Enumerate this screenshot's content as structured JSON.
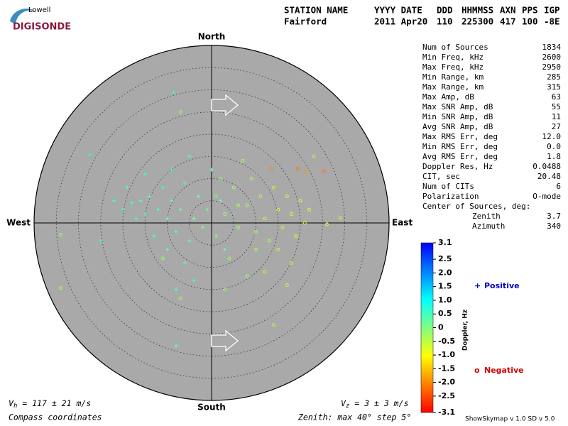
{
  "logo": {
    "top": "Lowell",
    "bottom": "DIGISONDE"
  },
  "header": {
    "columns": [
      "STATION NAME",
      "YYYY DATE",
      "DDD",
      "HHMMSS",
      "AXN",
      "PPS",
      "IGP"
    ],
    "values": [
      "Fairford",
      "2011 Apr20",
      "110",
      "225300",
      "417",
      "100",
      "-8E"
    ]
  },
  "stats": [
    [
      "Num of Sources",
      "1834"
    ],
    [
      "Min Freq, kHz",
      "2600"
    ],
    [
      "Max Freq, kHz",
      "2950"
    ],
    [
      "Min Range, km",
      "285"
    ],
    [
      "Max Range, km",
      "315"
    ],
    [
      "Max Amp, dB",
      "63"
    ],
    [
      "Max SNR Amp, dB",
      "55"
    ],
    [
      "Min SNR Amp, dB",
      "11"
    ],
    [
      "Avg SNR Amp, dB",
      "27"
    ],
    [
      "Max RMS Err, deg",
      "12.0"
    ],
    [
      "Min RMS Err, deg",
      "0.0"
    ],
    [
      "Avg RMS Err, deg",
      "1.8"
    ],
    [
      "Doppler Res, Hz",
      "0.0488"
    ],
    [
      "CIT, sec",
      "20.48"
    ],
    [
      "Num of CITs",
      "6"
    ],
    [
      "Polarization",
      "O-mode"
    ]
  ],
  "center": {
    "title": "Center of Sources, deg:",
    "rows": [
      [
        "Zenith",
        "3.7"
      ],
      [
        "Azimuth",
        "340"
      ]
    ]
  },
  "footer": {
    "vh_symbol": "V",
    "vh_sub": "h",
    "vh_text": " = 117 ± 21 m/s",
    "vz_symbol": "V",
    "vz_sub": "z",
    "vz_text": " = 3 ± 3 m/s",
    "coords": "Compass coordinates",
    "zenith": "Zenith: max 40°  step 5°",
    "version": "ShowSkymap v 1.0   SD v 5.0"
  },
  "chart_data": {
    "type": "skymap",
    "directions": {
      "north": "North",
      "south": "South",
      "east": "East",
      "west": "West"
    },
    "rlim": [
      0,
      40
    ],
    "rticks": [
      5,
      10,
      15,
      20,
      25,
      30,
      35
    ],
    "colorbar": {
      "title": "Doppler, Hz",
      "lim": [
        -3.1,
        3.1
      ],
      "colors": [
        "#ff0000",
        "#ff8000",
        "#ffff00",
        "#80ff80",
        "#00ffff",
        "#0080ff",
        "#0000ff"
      ],
      "ticks": [
        3.1,
        2.5,
        {
          "value": 2,
          "label": "2.0"
        },
        1.5,
        {
          "value": 1,
          "label": "1.0"
        },
        0.5,
        0,
        -0.5,
        {
          "value": -1,
          "label": "-1.0"
        },
        -1.5,
        {
          "value": -2,
          "label": "-2.0"
        },
        -2.5,
        -3.1
      ]
    },
    "series": [
      {
        "name": "Positive",
        "symbol": "+",
        "color": "#0000c0",
        "marker": "plus",
        "x": [
          -27.4,
          -19,
          -18,
          -16,
          -15,
          -14,
          -12,
          -11,
          -10,
          -9,
          -8,
          -7,
          -6,
          -5,
          -4,
          -3,
          -2,
          -1,
          0,
          1,
          2,
          3,
          -13,
          -10,
          -6,
          -4,
          -9,
          -15,
          -20,
          -25,
          -8,
          -8,
          -8.5,
          -17,
          -22,
          -5
        ],
        "values": [
          15.4,
          8,
          4.6,
          5,
          2,
          6,
          3,
          8,
          1,
          5,
          -2,
          3,
          9,
          -4,
          1,
          6,
          -1,
          3,
          12,
          -3,
          5,
          -6,
          -3,
          -6,
          -9,
          -13,
          12,
          11,
          3,
          -4,
          -15,
          -27.7,
          29.4,
          1,
          5,
          15
        ],
        "doppler": [
          0.8,
          0.5,
          0.6,
          0.4,
          0.5,
          0.3,
          0.4,
          0.6,
          0.2,
          0.3,
          0.4,
          0.2,
          0.5,
          0.3,
          0.1,
          0.2,
          0.1,
          0.2,
          0.4,
          0.1,
          0.2,
          0.3,
          0.5,
          0.3,
          0.4,
          0.5,
          0.6,
          0.7,
          0.6,
          0.7,
          0.4,
          0.3,
          0.7,
          0.5,
          0.6,
          0.4
        ]
      },
      {
        "name": "Negative",
        "symbol": "o",
        "color": "#d00000",
        "marker": "circle",
        "x": [
          -34,
          -34,
          1,
          3,
          5,
          6,
          8,
          9,
          10,
          11,
          12,
          13,
          14,
          15,
          16,
          17,
          18,
          19,
          20,
          21,
          22,
          7,
          4,
          8,
          3,
          12,
          17,
          18,
          26,
          29,
          14,
          -7,
          -11,
          -7,
          23,
          13.4,
          19.4,
          21.1,
          25.3,
          2,
          6,
          10,
          15
        ],
        "values": [
          -2.7,
          -14.7,
          6,
          2,
          8,
          -1,
          4,
          10,
          -2,
          6,
          1,
          -4,
          8,
          3,
          -1,
          6,
          2,
          -3,
          5,
          0,
          3,
          14,
          -8,
          -12,
          -15,
          -11,
          -14,
          -9,
          -0.3,
          1.1,
          -23,
          -17,
          -8,
          25,
          15,
          12.2,
          12.2,
          11.5,
          11.7,
          10,
          4,
          -6,
          -6
        ],
        "doppler": [
          -0.2,
          -0.2,
          -0.1,
          -0.2,
          -0.2,
          -0.3,
          -0.3,
          -0.4,
          -0.3,
          -0.4,
          -0.5,
          -0.4,
          -0.5,
          -0.6,
          -0.5,
          -0.6,
          -0.7,
          -0.6,
          -0.7,
          -0.8,
          -0.7,
          -0.3,
          -0.2,
          -0.3,
          -0.2,
          -0.4,
          -0.5,
          -0.5,
          -0.6,
          -0.6,
          -0.4,
          -0.3,
          -0.2,
          -0.1,
          -0.5,
          -2.0,
          -2.1,
          -1.9,
          -2.2,
          -0.2,
          -0.3,
          -0.4,
          -0.5
        ]
      }
    ]
  }
}
